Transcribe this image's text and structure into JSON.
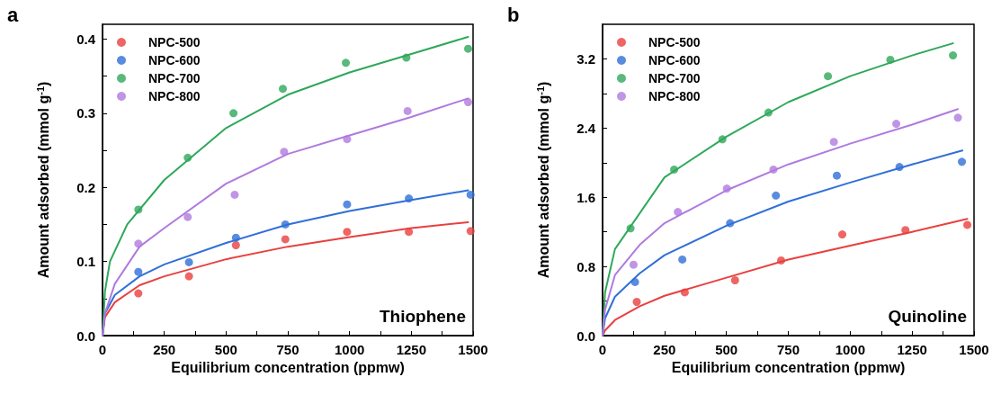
{
  "chart_data": [
    {
      "type": "scatter",
      "xlabel": "Equilibrium concentration (ppmw)",
      "ylabel": "Amount adsorbed (mmol g$^{-1}$)",
      "annotations": [
        "a",
        "Thiophene"
      ],
      "xlim": [
        0,
        1500
      ],
      "ylim": [
        0,
        0.42
      ],
      "xticks": [
        0,
        250,
        500,
        750,
        1000,
        1250,
        1500
      ],
      "yticks": [
        {
          "value": 0,
          "label": "0.0"
        },
        0.1,
        0.2,
        0.3,
        0.4
      ],
      "grid": false,
      "legend": "top left",
      "marker": "circle",
      "series": [
        {
          "name": "NPC-500",
          "color": "#e8403f",
          "x": [
            145,
            350,
            540,
            740,
            990,
            1240,
            1490
          ],
          "values": [
            0.057,
            0.08,
            0.122,
            0.13,
            0.14,
            0.14,
            0.141
          ]
        },
        {
          "name": "NPC-600",
          "color": "#2f6fd8",
          "x": [
            145,
            350,
            540,
            740,
            990,
            1240,
            1490
          ],
          "values": [
            0.086,
            0.099,
            0.132,
            0.15,
            0.177,
            0.185,
            0.19
          ]
        },
        {
          "name": "NPC-700",
          "color": "#2ea85a",
          "x": [
            145,
            345,
            530,
            730,
            985,
            1230,
            1480
          ],
          "values": [
            0.17,
            0.24,
            0.3,
            0.333,
            0.368,
            0.375,
            0.387
          ]
        },
        {
          "name": "NPC-800",
          "color": "#b07ae0",
          "x": [
            145,
            345,
            535,
            735,
            990,
            1235,
            1480
          ],
          "values": [
            0.124,
            0.16,
            0.19,
            0.248,
            0.265,
            0.303,
            0.315
          ]
        },
        {
          "type": "line",
          "marker": "none",
          "color": "#e8403f",
          "x": [
            0,
            10,
            50,
            150,
            250,
            500,
            750,
            1000,
            1250,
            1480
          ],
          "values": [
            0,
            0.025,
            0.045,
            0.068,
            0.08,
            0.103,
            0.12,
            0.133,
            0.145,
            0.153
          ]
        },
        {
          "type": "line",
          "marker": "none",
          "color": "#2f6fd8",
          "x": [
            0,
            10,
            50,
            150,
            250,
            500,
            750,
            1000,
            1250,
            1480
          ],
          "values": [
            0,
            0.03,
            0.055,
            0.08,
            0.096,
            0.125,
            0.15,
            0.168,
            0.183,
            0.196
          ]
        },
        {
          "type": "line",
          "marker": "none",
          "color": "#2ea85a",
          "x": [
            0,
            10,
            30,
            100,
            250,
            500,
            750,
            1000,
            1250,
            1480
          ],
          "values": [
            0,
            0.06,
            0.1,
            0.15,
            0.21,
            0.28,
            0.325,
            0.355,
            0.38,
            0.403
          ]
        },
        {
          "type": "line",
          "marker": "none",
          "color": "#b07ae0",
          "x": [
            0,
            10,
            50,
            150,
            250,
            500,
            750,
            1000,
            1250,
            1480
          ],
          "values": [
            0,
            0.03,
            0.07,
            0.12,
            0.145,
            0.205,
            0.245,
            0.27,
            0.295,
            0.32
          ]
        }
      ]
    },
    {
      "type": "scatter",
      "xlabel": "Equilibrium concentration (ppmw)",
      "ylabel": "Amount adsorbed (mmol g$^{-1}$)",
      "annotations": [
        "b",
        "Quinoline"
      ],
      "xlim": [
        0,
        1500
      ],
      "ylim": [
        0,
        3.6
      ],
      "xticks": [
        0,
        250,
        500,
        750,
        1000,
        1250,
        1500
      ],
      "yticks": [
        {
          "value": 0,
          "label": "0.0"
        },
        0.8,
        1.6,
        2.4,
        3.2
      ],
      "grid": false,
      "legend": "top left",
      "marker": "circle",
      "series": [
        {
          "name": "NPC-500",
          "color": "#e8403f",
          "x": [
            138,
            332,
            535,
            721,
            968,
            1223,
            1473
          ],
          "values": [
            0.39,
            0.5,
            0.64,
            0.87,
            1.17,
            1.22,
            1.28
          ]
        },
        {
          "name": "NPC-600",
          "color": "#2f6fd8",
          "x": [
            131,
            322,
            515,
            700,
            946,
            1199,
            1451
          ],
          "values": [
            0.62,
            0.88,
            1.3,
            1.62,
            1.85,
            1.95,
            2.01
          ]
        },
        {
          "name": "NPC-700",
          "color": "#2ea85a",
          "x": [
            113,
            289,
            484,
            670,
            910,
            1162,
            1415
          ],
          "values": [
            1.24,
            1.92,
            2.27,
            2.58,
            3.0,
            3.19,
            3.24
          ]
        },
        {
          "name": "NPC-800",
          "color": "#b07ae0",
          "x": [
            125,
            304,
            502,
            690,
            934,
            1186,
            1435
          ],
          "values": [
            0.82,
            1.43,
            1.7,
            1.92,
            2.24,
            2.45,
            2.52
          ]
        },
        {
          "type": "line",
          "marker": "none",
          "color": "#e8403f",
          "x": [
            0,
            10,
            50,
            150,
            250,
            500,
            750,
            1000,
            1250,
            1473
          ],
          "values": [
            0,
            0.06,
            0.18,
            0.34,
            0.46,
            0.67,
            0.88,
            1.04,
            1.2,
            1.35
          ]
        },
        {
          "type": "line",
          "marker": "none",
          "color": "#2f6fd8",
          "x": [
            0,
            10,
            50,
            150,
            250,
            500,
            750,
            1000,
            1250,
            1453
          ],
          "values": [
            0,
            0.2,
            0.45,
            0.72,
            0.93,
            1.27,
            1.55,
            1.77,
            1.98,
            2.14
          ]
        },
        {
          "type": "line",
          "marker": "none",
          "color": "#2ea85a",
          "x": [
            0,
            10,
            50,
            250,
            500,
            750,
            1000,
            1250,
            1415
          ],
          "values": [
            0,
            0.5,
            1.0,
            1.83,
            2.3,
            2.7,
            3.0,
            3.24,
            3.38
          ]
        },
        {
          "type": "line",
          "marker": "none",
          "color": "#b07ae0",
          "x": [
            0,
            10,
            50,
            150,
            250,
            500,
            750,
            1000,
            1250,
            1435
          ],
          "values": [
            0,
            0.3,
            0.7,
            1.05,
            1.3,
            1.68,
            1.98,
            2.22,
            2.44,
            2.62
          ]
        }
      ]
    }
  ]
}
